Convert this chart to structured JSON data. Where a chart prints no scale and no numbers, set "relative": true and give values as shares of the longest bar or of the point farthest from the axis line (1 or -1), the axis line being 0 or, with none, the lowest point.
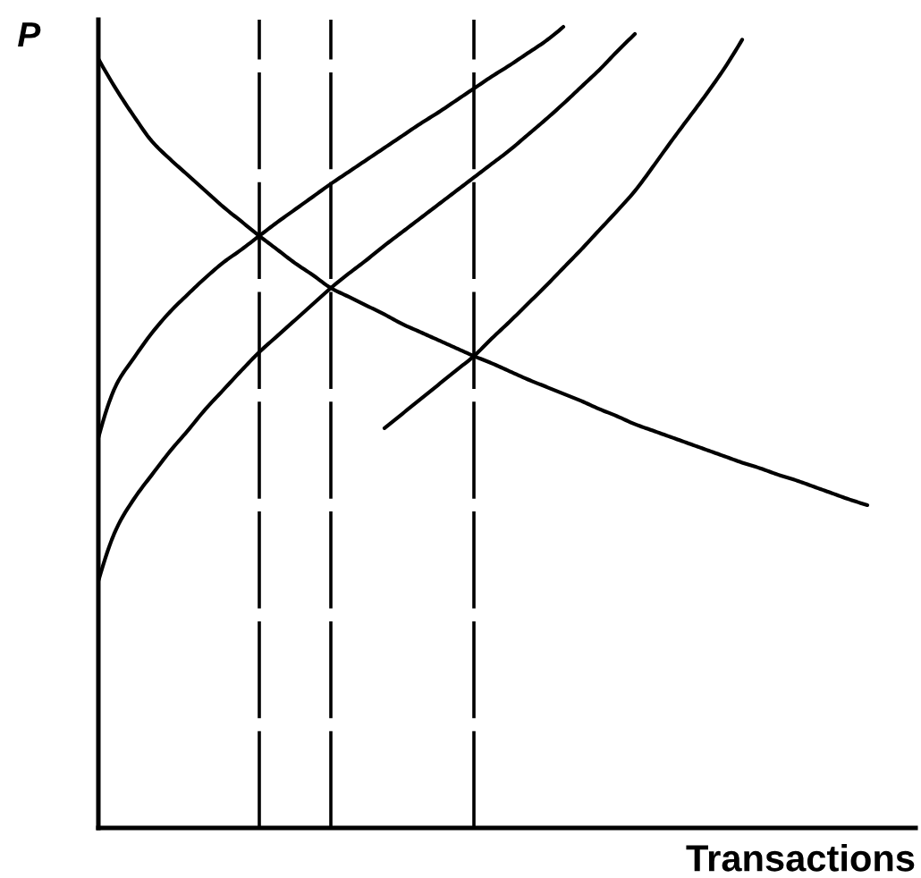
{
  "chart_data": {
    "type": "line",
    "relative": true,
    "xlabel": "Transactions",
    "ylabel": "P",
    "grid": "x",
    "categories": [
      null,
      null,
      null,
      null,
      null,
      null,
      null,
      null,
      null,
      null,
      null,
      null,
      null,
      null,
      null,
      null,
      null,
      null,
      null,
      null,
      null,
      null,
      null,
      null,
      null,
      null,
      null,
      null,
      null,
      null,
      null,
      null,
      null,
      null,
      null,
      null,
      null,
      null,
      null,
      null,
      null,
      null,
      null,
      null
    ],
    "series": [
      {
        "color": "#000000",
        "values": [
          0.96,
          0.922,
          0.888,
          0.857,
          0.835,
          0.815,
          0.795,
          0.775,
          0.757,
          0.739,
          0.722,
          0.705,
          0.69,
          0.674,
          0.663,
          0.652,
          0.641,
          0.629,
          0.619,
          0.609,
          0.599,
          0.589,
          0.58,
          0.57,
          0.56,
          0.551,
          0.542,
          0.533,
          0.523,
          0.514,
          0.504,
          0.496,
          0.488,
          0.48,
          0.472,
          0.464,
          0.456,
          0.449,
          0.441,
          0.434,
          0.426,
          0.418,
          0.41,
          0.403
        ]
      },
      {
        "color": "#000000",
        "values": [
          0.487,
          0.553,
          0.587,
          0.618,
          0.644,
          0.666,
          0.687,
          0.706,
          0.722,
          0.739,
          0.756,
          0.772,
          0.788,
          0.804,
          0.819,
          0.834,
          0.849,
          0.864,
          0.879,
          0.893,
          0.908,
          0.923,
          0.938,
          0.952,
          0.967,
          0.982,
          1.0,
          null,
          null,
          null,
          null,
          null,
          null,
          null,
          null,
          null,
          null,
          null,
          null,
          null,
          null,
          null,
          null,
          null
        ]
      },
      {
        "color": "#000000",
        "values": [
          0.308,
          0.373,
          0.411,
          0.441,
          0.47,
          0.496,
          0.523,
          0.547,
          0.571,
          0.594,
          0.614,
          0.634,
          0.654,
          0.674,
          0.692,
          0.709,
          0.727,
          0.744,
          0.761,
          0.778,
          0.795,
          0.812,
          0.829,
          0.846,
          0.865,
          0.884,
          0.904,
          0.925,
          0.946,
          0.969,
          0.991,
          null,
          null,
          null,
          null,
          null,
          null,
          null,
          null,
          null,
          null,
          null,
          null,
          null
        ]
      },
      {
        "color": "#000000",
        "values": [
          null,
          null,
          null,
          null,
          null,
          null,
          null,
          null,
          null,
          null,
          null,
          null,
          null,
          null,
          null,
          null,
          0.499,
          0.517,
          0.535,
          0.553,
          0.571,
          0.589,
          0.611,
          0.632,
          0.654,
          0.676,
          0.699,
          0.722,
          0.746,
          0.77,
          0.795,
          0.825,
          0.856,
          0.886,
          0.916,
          0.948,
          0.984,
          null,
          null,
          null,
          null,
          null,
          null,
          null
        ]
      }
    ]
  }
}
